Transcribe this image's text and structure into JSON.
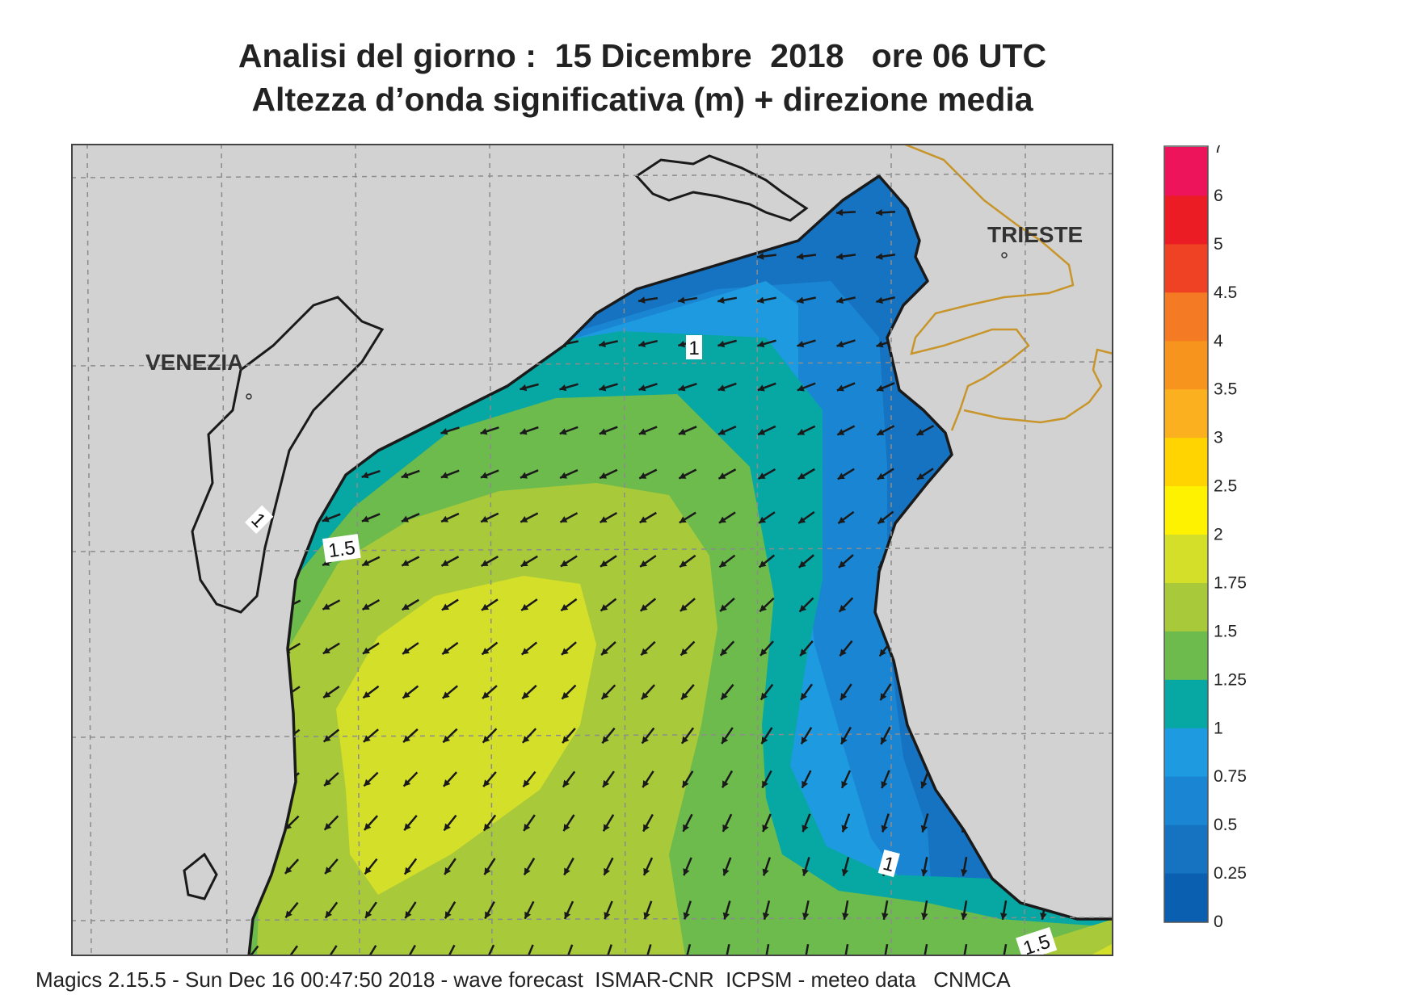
{
  "title_line1": "Analisi del giorno :  15 Dicembre  2018   ore 06 UTC",
  "title_line2": "Altezza d’onda significativa (m) + direzione media",
  "footer": "Magics 2.15.5 - Sun Dec 16 00:47:50 2018 - wave forecast  ISMAR-CNR  ICPSM - meteo data   CNMCA",
  "cities": [
    {
      "name": "VENEZIA"
    },
    {
      "name": "TRIESTE"
    }
  ],
  "contour_labels": [
    "1",
    "1",
    "1.5",
    "1",
    "1.5"
  ],
  "legend": {
    "ticks": [
      "0",
      "0.25",
      "0.5",
      "0.75",
      "1",
      "1.25",
      "1.5",
      "1.75",
      "2",
      "2.5",
      "3",
      "3.5",
      "4",
      "4.5",
      "5",
      "6",
      "7"
    ],
    "colors": [
      "#0a5fb0",
      "#1673c2",
      "#1a86d3",
      "#1e9be0",
      "#07a7a4",
      "#6dbb4c",
      "#a8c93a",
      "#d4df2a",
      "#fff200",
      "#ffd400",
      "#fbb020",
      "#f7941d",
      "#f47a24",
      "#ef4123",
      "#ec1c24",
      "#ed145b"
    ]
  },
  "colors": {
    "land": "#d2d2d2",
    "coast": "#1a1a1a",
    "border": "#c8952b",
    "grid": "#8c8c8c",
    "arrow": "#1a1a1a"
  }
}
